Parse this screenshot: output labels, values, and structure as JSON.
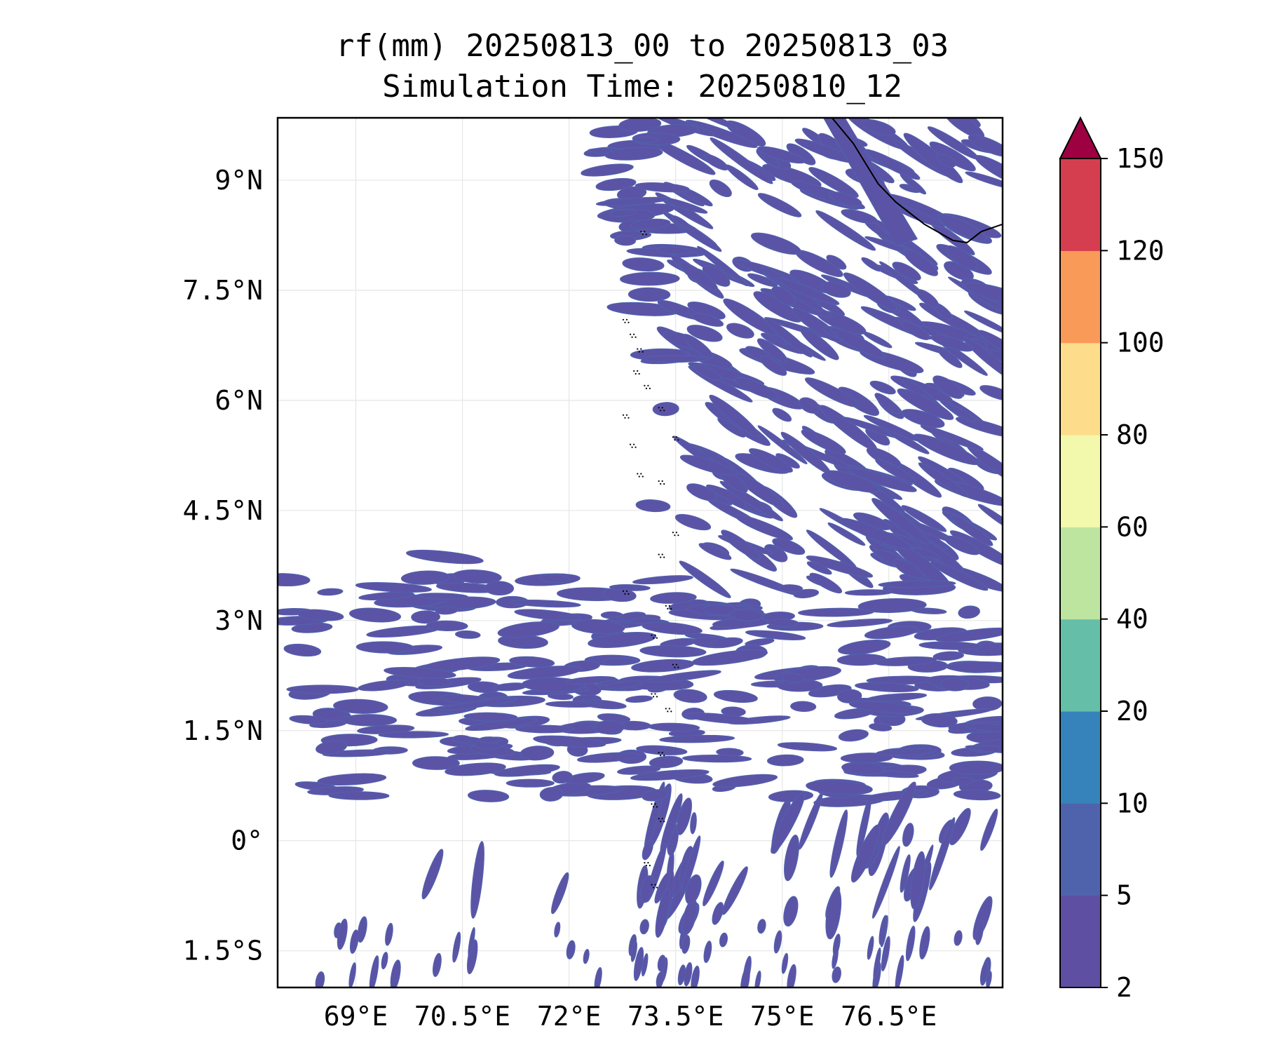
{
  "title": {
    "line1": "rf(mm) 20250813_00 to 20250813_03",
    "line2": "Simulation Time: 20250810_12"
  },
  "map": {
    "lon_range": [
      67.9,
      78.1
    ],
    "lat_range": [
      -2.0,
      9.85
    ],
    "x_ticks": [
      {
        "value": 69.0,
        "label": "69°E"
      },
      {
        "value": 70.5,
        "label": "70.5°E"
      },
      {
        "value": 72.0,
        "label": "72°E"
      },
      {
        "value": 73.5,
        "label": "73.5°E"
      },
      {
        "value": 75.0,
        "label": "75°E"
      },
      {
        "value": 76.5,
        "label": "76.5°E"
      }
    ],
    "y_ticks": [
      {
        "value": 9.0,
        "label": "9°N"
      },
      {
        "value": 7.5,
        "label": "7.5°N"
      },
      {
        "value": 6.0,
        "label": "6°N"
      },
      {
        "value": 4.5,
        "label": "4.5°N"
      },
      {
        "value": 3.0,
        "label": "3°N"
      },
      {
        "value": 1.5,
        "label": "1.5°N"
      },
      {
        "value": 0.0,
        "label": "0°"
      },
      {
        "value": -1.5,
        "label": "1.5°S"
      }
    ],
    "grid": true,
    "field_color": "#5b54a6",
    "field_edge_color": "#4f63ad",
    "coastline_color": "#000000"
  },
  "colorbar": {
    "extend": "max",
    "levels": [
      2,
      5,
      10,
      20,
      40,
      60,
      80,
      100,
      120,
      150
    ],
    "colors": [
      "#5e4fa2",
      "#4f63ad",
      "#3682ba",
      "#65bfa8",
      "#bde5a0",
      "#f3f9ac",
      "#fddd8b",
      "#fa9a58",
      "#d53e4f",
      "#9e0142"
    ],
    "labels": [
      "2",
      "5",
      "10",
      "20",
      "40",
      "60",
      "80",
      "100",
      "120",
      "150"
    ]
  }
}
